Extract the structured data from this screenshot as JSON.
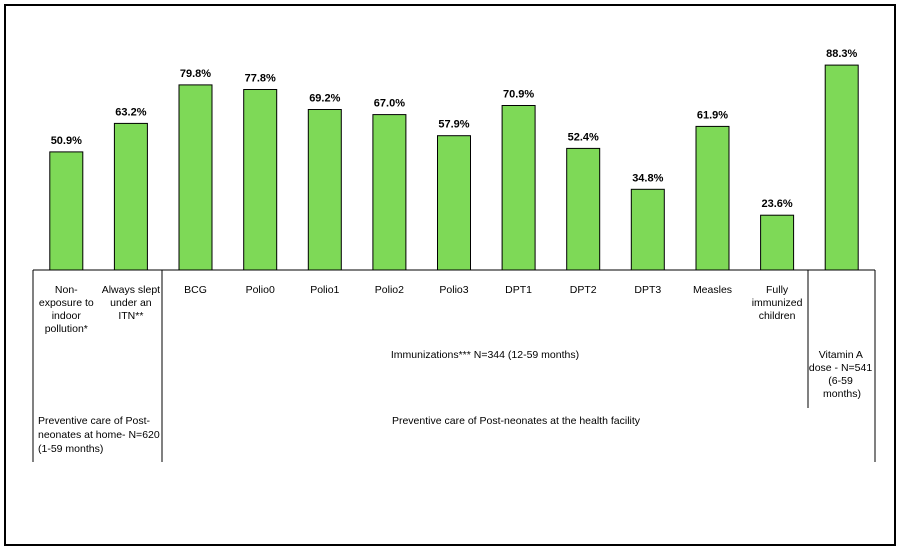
{
  "chart_data": {
    "type": "bar",
    "title": "",
    "xlabel": "",
    "ylabel": "",
    "ylim": [
      0,
      100
    ],
    "grid": false,
    "categories": [
      [
        "Non-",
        "exposure to",
        "indoor",
        "pollution*"
      ],
      [
        "Always slept",
        "under an",
        "ITN**"
      ],
      [
        "BCG"
      ],
      [
        "Polio0"
      ],
      [
        "Polio1"
      ],
      [
        "Polio2"
      ],
      [
        "Polio3"
      ],
      [
        "DPT1"
      ],
      [
        "DPT2"
      ],
      [
        "DPT3"
      ],
      [
        "Measles"
      ],
      [
        "Fully",
        "immunized",
        "children"
      ],
      []
    ],
    "values": [
      50.9,
      63.2,
      79.8,
      77.8,
      69.2,
      67.0,
      57.9,
      70.9,
      52.4,
      34.8,
      61.9,
      23.6,
      88.3
    ],
    "value_labels": [
      "50.9%",
      "63.2%",
      "79.8%",
      "77.8%",
      "69.2%",
      "67.0%",
      "57.9%",
      "70.9%",
      "52.4%",
      "34.8%",
      "61.9%",
      "23.6%",
      "88.3%"
    ],
    "bar_color": "#7ed957",
    "bar_edge_color": "#000000",
    "group_labels": {
      "immunizations": "Immunizations*** N=344 (12-59 months)",
      "vitamin_a": [
        "Vitamin A",
        "dose - N=541",
        "(6-59",
        "months)"
      ],
      "home_care": [
        "Preventive care of Post-",
        "neonates at home- N=620",
        "(1-59 months)"
      ],
      "facility_care": "Preventive care of Post-neonates at the health facility"
    }
  }
}
